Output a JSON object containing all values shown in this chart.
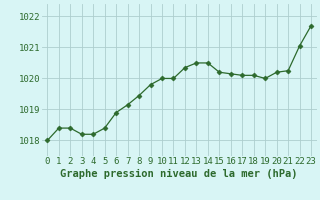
{
  "x": [
    0,
    1,
    2,
    3,
    4,
    5,
    6,
    7,
    8,
    9,
    10,
    11,
    12,
    13,
    14,
    15,
    16,
    17,
    18,
    19,
    20,
    21,
    22,
    23
  ],
  "y": [
    1018.0,
    1018.4,
    1018.4,
    1018.2,
    1018.2,
    1018.4,
    1018.9,
    1019.15,
    1019.45,
    1019.8,
    1020.0,
    1020.0,
    1020.35,
    1020.5,
    1020.5,
    1020.2,
    1020.15,
    1020.1,
    1020.1,
    1020.0,
    1020.2,
    1020.25,
    1021.05,
    1021.7
  ],
  "line_color": "#2d6a2d",
  "marker": "D",
  "marker_size": 2.5,
  "bg_color": "#d8f5f5",
  "grid_color": "#aecece",
  "xlabel": "Graphe pression niveau de la mer (hPa)",
  "xlabel_fontsize": 7.5,
  "ylabel_ticks": [
    1018,
    1019,
    1020,
    1021,
    1022
  ],
  "ylim": [
    1017.5,
    1022.4
  ],
  "xlim": [
    -0.5,
    23.5
  ],
  "tick_fontsize": 6.5,
  "tick_color": "#2d6a2d"
}
